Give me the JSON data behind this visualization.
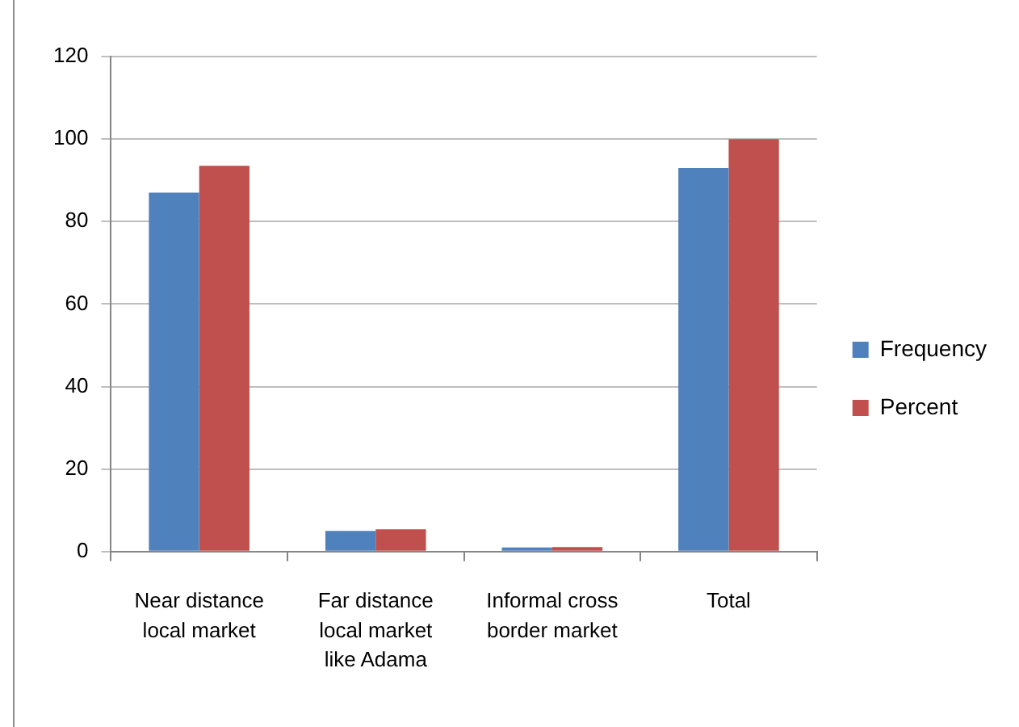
{
  "chart_data": {
    "type": "bar",
    "categories": [
      "Near distance local market",
      "Far distance local market like Adama",
      "Informal cross border market",
      "Total"
    ],
    "series": [
      {
        "name": "Frequency",
        "color": "#4f81bd",
        "values": [
          87,
          5,
          1,
          93
        ]
      },
      {
        "name": "Percent",
        "color": "#c0504d",
        "values": [
          93.5,
          5.4,
          1.1,
          100
        ]
      }
    ],
    "ylim": [
      0,
      120
    ],
    "yticks": [
      0,
      20,
      40,
      60,
      80,
      100,
      120
    ],
    "grid": "y",
    "legend": "right"
  }
}
